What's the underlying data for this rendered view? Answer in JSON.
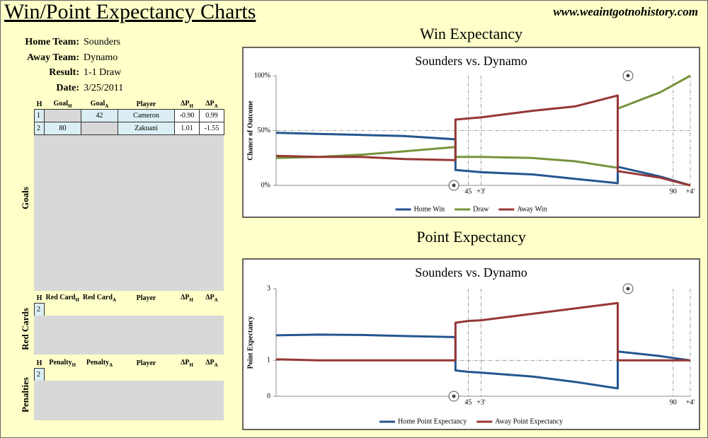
{
  "header": {
    "title": "Win/Point Expectancy Charts",
    "url": "www.weaintgotnohistory.com"
  },
  "info": [
    {
      "label": "Home Team:",
      "value": "Sounders"
    },
    {
      "label": "Away Team:",
      "value": "Dynamo"
    },
    {
      "label": "Result:",
      "value": "1-1 Draw"
    },
    {
      "label": "Date:",
      "value": "3/25/2011"
    }
  ],
  "tables": [
    {
      "name": "Goals",
      "headers": [
        "H",
        {
          "main": "Goal",
          "sub": "H"
        },
        {
          "main": "Goal",
          "sub": "A"
        },
        "Player",
        {
          "main": "ΔP",
          "sub": "H"
        },
        {
          "main": "ΔP",
          "sub": "A"
        }
      ],
      "rows": [
        [
          "1",
          null,
          "42",
          "Cameron",
          "-0.90",
          "0.99"
        ],
        [
          "2",
          "80",
          null,
          "Zakuani",
          "1.01",
          "-1.55"
        ]
      ]
    },
    {
      "name": "Red Cards",
      "headers": [
        "H",
        {
          "main": "Red Card",
          "sub": "H"
        },
        {
          "main": "Red Card",
          "sub": "A"
        },
        "Player",
        {
          "main": "ΔP",
          "sub": "H"
        },
        {
          "main": "ΔP",
          "sub": "A"
        }
      ],
      "rows": [
        [
          "2"
        ]
      ]
    },
    {
      "name": "Penalties",
      "headers": [
        "H",
        {
          "main": "Penalty",
          "sub": "H"
        },
        {
          "main": "Penalty",
          "sub": "A"
        },
        "Player",
        {
          "main": "ΔP",
          "sub": "H"
        },
        {
          "main": "ΔP",
          "sub": "A"
        }
      ],
      "rows": [
        [
          "2"
        ]
      ]
    }
  ],
  "chart_data": [
    {
      "type": "line",
      "heading": "Win Expectancy",
      "title": "Sounders vs. Dynamo",
      "y_label": "Chance of Outcome",
      "x": [
        0,
        10,
        20,
        30,
        42,
        42,
        45,
        48,
        60,
        70,
        80,
        80,
        90,
        97
      ],
      "xlim": [
        0,
        97
      ],
      "xticks": [
        45,
        {
          "value": 48,
          "label": "+3'"
        },
        {
          "value": 93,
          "label": "90"
        },
        {
          "value": 97,
          "label": "+4'"
        }
      ],
      "ylim": [
        0,
        100
      ],
      "yticks": [
        {
          "value": 0,
          "label": "0%"
        },
        {
          "value": 50,
          "label": "50%"
        },
        {
          "value": 100,
          "label": "100%"
        }
      ],
      "grid": true,
      "legend": "bottom",
      "series": [
        {
          "name": "Home Win",
          "color": "#24558f",
          "values": [
            48,
            47,
            46,
            45,
            42,
            14,
            13,
            12,
            10,
            6,
            2,
            17,
            8,
            0
          ]
        },
        {
          "name": "Draw",
          "color": "#77933c",
          "values": [
            25,
            26,
            28,
            31,
            35,
            26,
            26,
            26,
            25,
            22,
            16,
            70,
            85,
            100
          ]
        },
        {
          "name": "Away Win",
          "color": "#953735",
          "values": [
            27,
            26,
            26,
            24,
            23,
            60,
            61,
            62,
            68,
            72,
            82,
            13,
            7,
            0
          ]
        }
      ]
    },
    {
      "type": "line",
      "heading": "Point Expectancy",
      "title": "Sounders vs. Dynamo",
      "y_label": "Point Expectancy",
      "x": [
        0,
        10,
        20,
        30,
        42,
        42,
        45,
        48,
        60,
        70,
        80,
        80,
        90,
        97
      ],
      "xlim": [
        0,
        97
      ],
      "xticks": [
        45,
        {
          "value": 48,
          "label": "+3'"
        },
        {
          "value": 93,
          "label": "90"
        },
        {
          "value": 97,
          "label": "+4'"
        }
      ],
      "ylim": [
        0,
        3
      ],
      "yticks": [
        0,
        1,
        3
      ],
      "grid": true,
      "legend": "bottom",
      "series": [
        {
          "name": "Home Point Expectancy",
          "color": "#24558f",
          "values": [
            1.7,
            1.72,
            1.71,
            1.68,
            1.65,
            0.72,
            0.68,
            0.66,
            0.55,
            0.4,
            0.22,
            1.25,
            1.12,
            1.0
          ]
        },
        {
          "name": "Away Point Expectancy",
          "color": "#953735",
          "values": [
            1.03,
            1.0,
            1.0,
            1.0,
            1.0,
            2.05,
            2.1,
            2.12,
            2.3,
            2.45,
            2.6,
            1.0,
            1.0,
            1.0
          ]
        }
      ]
    }
  ]
}
